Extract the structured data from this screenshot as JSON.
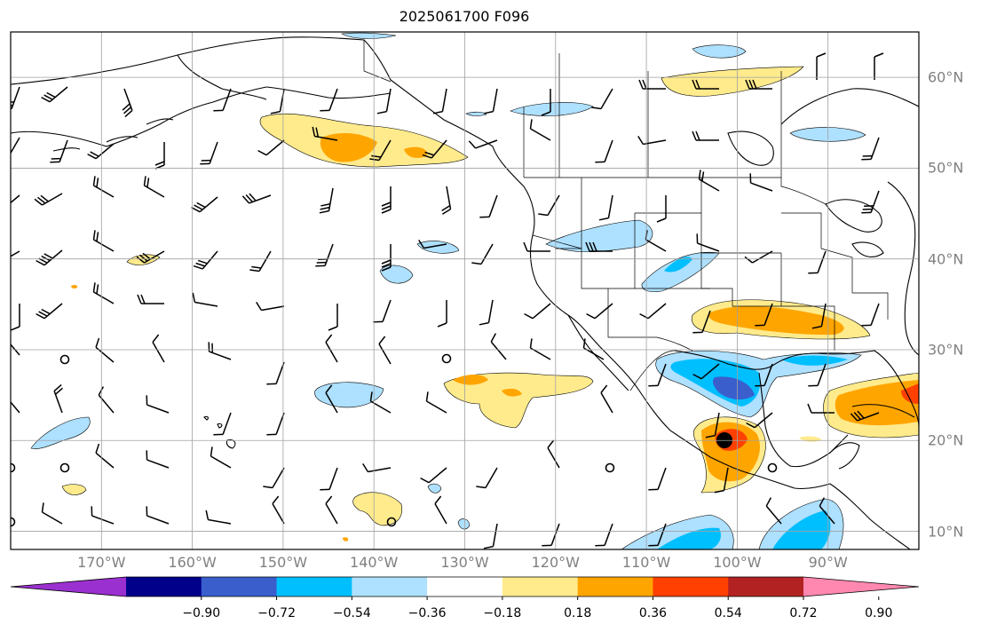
{
  "title": "2025061700 F096",
  "map": {
    "projection": "PlateCarree",
    "extent": {
      "lon_min": -180,
      "lon_max": -80,
      "lat_min": 8,
      "lat_max": 65
    },
    "gridlines": true,
    "lon_labels": [
      "170°W",
      "160°W",
      "150°W",
      "140°W",
      "130°W",
      "120°W",
      "110°W",
      "100°W",
      "90°W"
    ],
    "lon_values": [
      -170,
      -160,
      -150,
      -140,
      -130,
      -120,
      -110,
      -100,
      -90
    ],
    "lat_labels": [
      "10°N",
      "20°N",
      "30°N",
      "40°N",
      "50°N",
      "60°N"
    ],
    "lat_values": [
      10,
      20,
      30,
      40,
      50,
      60
    ]
  },
  "colorbar": {
    "orientation": "horizontal",
    "extend": "both",
    "tick_labels": [
      "−0.90",
      "−0.72",
      "−0.54",
      "−0.36",
      "−0.18",
      "0.18",
      "0.36",
      "0.54",
      "0.72",
      "0.90"
    ],
    "colors": [
      "#9b30d0",
      "#00008b",
      "#3a5fcd",
      "#00bfff",
      "#aee0ff",
      "#ffffff",
      "#ffeb8c",
      "#ffa500",
      "#ff4000",
      "#b22222",
      "#ff88b0"
    ]
  },
  "colors": {
    "coast": "#000000",
    "grid": "#a0a0a0",
    "label": "#808080"
  },
  "storm_marker": {
    "lon": -101.5,
    "lat": 20.0
  }
}
